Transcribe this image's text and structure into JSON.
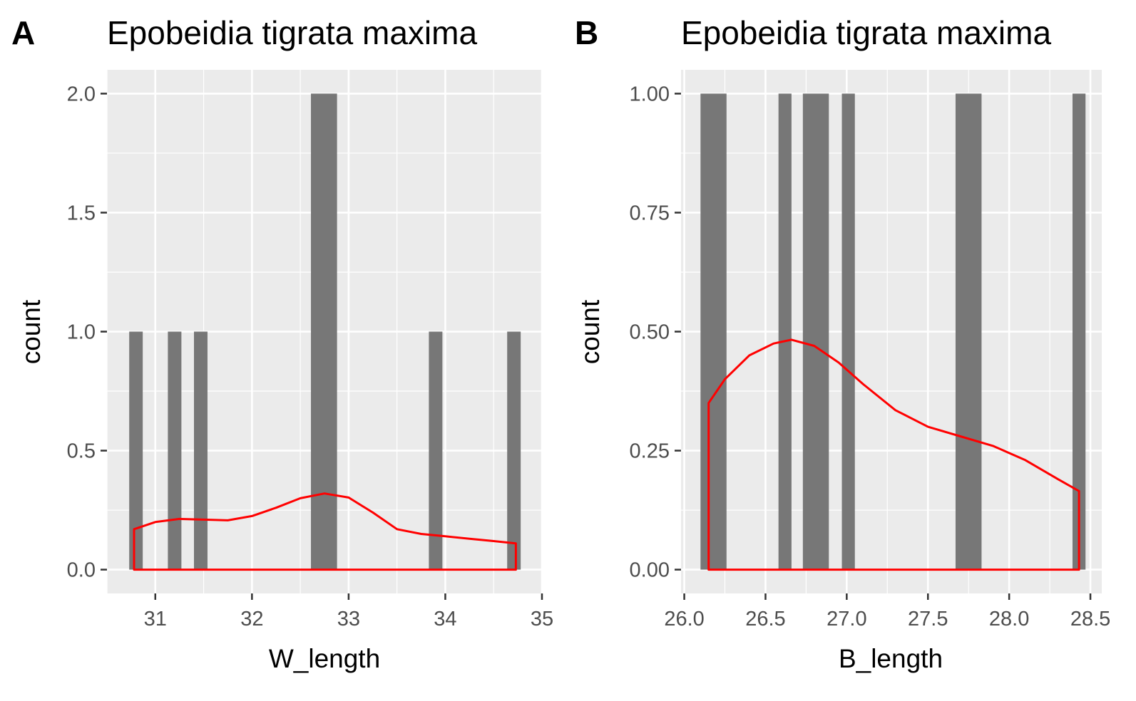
{
  "figure": {
    "colors": {
      "panel_background": "#ebebeb",
      "grid": "#ffffff",
      "bar_fill": "#777777",
      "density_line": "#ff0000",
      "tick_text": "#4d4d4d",
      "tick_mark": "#333333"
    }
  },
  "chart_data": [
    {
      "type": "bar",
      "panel_tag": "A",
      "title": "Epobeidia tigrata maxima",
      "xlabel": "W_length",
      "ylabel": "count",
      "xlim": [
        30.5,
        35
      ],
      "ylim": [
        -0.1,
        2.1
      ],
      "x_ticks": [
        31,
        32,
        33,
        34,
        35
      ],
      "x_tick_labels": [
        "31",
        "32",
        "33",
        "34",
        "35"
      ],
      "y_ticks": [
        0,
        0.5,
        1,
        1.5,
        2
      ],
      "y_tick_labels": [
        "0.0",
        "0.5",
        "1.0",
        "1.5",
        "2.0"
      ],
      "grid": true,
      "bars": [
        {
          "x0": 30.73,
          "x1": 30.87,
          "count": 1
        },
        {
          "x0": 31.13,
          "x1": 31.27,
          "count": 1
        },
        {
          "x0": 31.4,
          "x1": 31.54,
          "count": 1
        },
        {
          "x0": 32.61,
          "x1": 32.88,
          "count": 2
        },
        {
          "x0": 33.83,
          "x1": 33.97,
          "count": 1
        },
        {
          "x0": 34.64,
          "x1": 34.78,
          "count": 1
        }
      ],
      "density": {
        "color": "#ff0000",
        "x": [
          30.78,
          31.0,
          31.25,
          31.5,
          31.75,
          32.0,
          32.25,
          32.5,
          32.75,
          33.0,
          33.25,
          33.5,
          33.75,
          34.0,
          34.25,
          34.5,
          34.73
        ],
        "y": [
          0.17,
          0.2,
          0.213,
          0.21,
          0.207,
          0.225,
          0.26,
          0.3,
          0.32,
          0.303,
          0.24,
          0.17,
          0.15,
          0.14,
          0.13,
          0.12,
          0.11
        ]
      }
    },
    {
      "type": "bar",
      "panel_tag": "B",
      "title": "Epobeidia tigrata maxima",
      "xlabel": "B_length",
      "ylabel": "count",
      "xlim": [
        25.98,
        28.57
      ],
      "ylim": [
        -0.05,
        1.05
      ],
      "x_ticks": [
        26.0,
        26.5,
        27.0,
        27.5,
        28.0,
        28.5
      ],
      "x_tick_labels": [
        "26.0",
        "26.5",
        "27.0",
        "27.5",
        "28.0",
        "28.5"
      ],
      "y_ticks": [
        0,
        0.25,
        0.5,
        0.75,
        1
      ],
      "y_tick_labels": [
        "0.00",
        "0.25",
        "0.50",
        "0.75",
        "1.00"
      ],
      "grid": true,
      "bars": [
        {
          "x0": 26.1,
          "x1": 26.26,
          "count": 1
        },
        {
          "x0": 26.58,
          "x1": 26.66,
          "count": 1
        },
        {
          "x0": 26.73,
          "x1": 26.89,
          "count": 1
        },
        {
          "x0": 26.97,
          "x1": 27.05,
          "count": 1
        },
        {
          "x0": 27.67,
          "x1": 27.83,
          "count": 1
        },
        {
          "x0": 28.39,
          "x1": 28.47,
          "count": 1
        }
      ],
      "density": {
        "color": "#ff0000",
        "x": [
          26.15,
          26.25,
          26.4,
          26.55,
          26.66,
          26.8,
          26.95,
          27.1,
          27.3,
          27.5,
          27.7,
          27.9,
          28.1,
          28.3,
          28.43
        ],
        "y": [
          0.35,
          0.4,
          0.45,
          0.475,
          0.483,
          0.47,
          0.435,
          0.39,
          0.335,
          0.3,
          0.28,
          0.26,
          0.23,
          0.19,
          0.165
        ]
      }
    }
  ]
}
